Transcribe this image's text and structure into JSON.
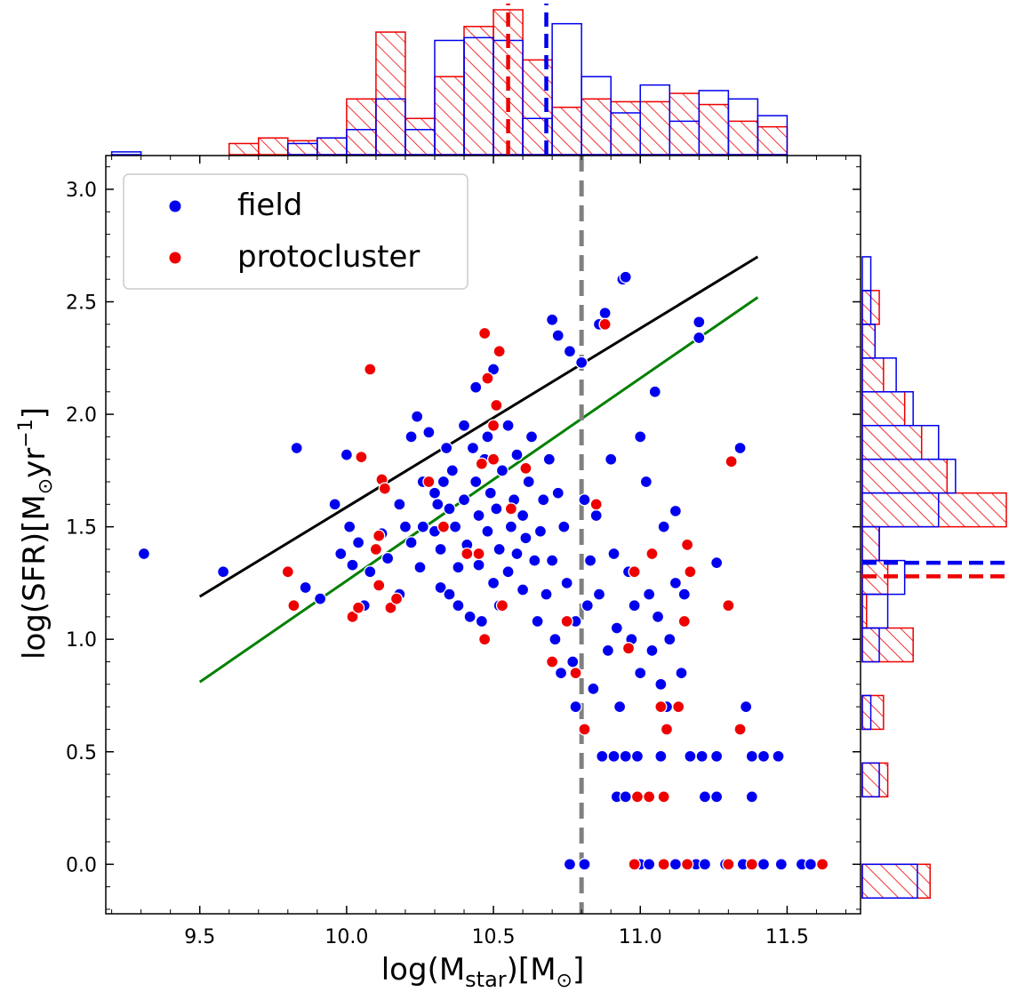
{
  "chart_data": {
    "type": "scatter",
    "title": "",
    "xlabel": {
      "main": "log(M",
      "sub": "star",
      "rest": ")[M",
      "sym": "⊙",
      "end": "]"
    },
    "ylabel": {
      "main": "log(SFR)[M",
      "sym": "⊙",
      "mid": "yr",
      "sup": "−1",
      "end": "]"
    },
    "xlim": [
      9.18,
      11.75
    ],
    "ylim": [
      -0.22,
      3.15
    ],
    "xticks": [
      "9.5",
      "10.0",
      "10.5",
      "11.0",
      "11.5"
    ],
    "xtick_values": [
      9.5,
      10.0,
      10.5,
      11.0,
      11.5
    ],
    "yticks": [
      "0.0",
      "0.5",
      "1.0",
      "1.5",
      "2.0",
      "2.5",
      "3.0"
    ],
    "ytick_values": [
      0.0,
      0.5,
      1.0,
      1.5,
      2.0,
      2.5,
      3.0
    ],
    "legend": {
      "placement": "upper-left",
      "entries": [
        {
          "label": "field",
          "color": "#0000ee"
        },
        {
          "label": "protocluster",
          "color": "#ee0000"
        }
      ]
    },
    "colors": {
      "field": "#0000ee",
      "protocluster": "#ee0000",
      "black_line": "#000000",
      "green_line": "#008000",
      "mass_cut": "#808080"
    },
    "lines": [
      {
        "color": "black",
        "x": [
          9.5,
          11.4
        ],
        "y": [
          1.19,
          2.7
        ]
      },
      {
        "color": "green",
        "x": [
          9.5,
          11.4
        ],
        "y": [
          0.81,
          2.52
        ]
      }
    ],
    "vline_mass_cut": 10.8,
    "series": [
      {
        "name": "field",
        "points": [
          [
            9.31,
            1.38
          ],
          [
            9.58,
            1.3
          ],
          [
            9.83,
            1.85
          ],
          [
            9.86,
            1.23
          ],
          [
            9.91,
            1.18
          ],
          [
            9.96,
            1.6
          ],
          [
            9.98,
            1.38
          ],
          [
            10.0,
            1.82
          ],
          [
            10.01,
            1.5
          ],
          [
            10.02,
            1.33
          ],
          [
            10.04,
            1.43
          ],
          [
            10.06,
            1.15
          ],
          [
            10.08,
            1.3
          ],
          [
            10.12,
            1.47
          ],
          [
            10.14,
            1.36
          ],
          [
            10.18,
            1.6
          ],
          [
            10.18,
            1.2
          ],
          [
            10.2,
            1.5
          ],
          [
            10.22,
            1.43
          ],
          [
            10.22,
            1.9
          ],
          [
            10.24,
            1.99
          ],
          [
            10.25,
            1.32
          ],
          [
            10.26,
            1.5
          ],
          [
            10.26,
            1.7
          ],
          [
            10.28,
            1.92
          ],
          [
            10.3,
            1.65
          ],
          [
            10.3,
            1.48
          ],
          [
            10.31,
            1.6
          ],
          [
            10.32,
            1.4
          ],
          [
            10.32,
            1.23
          ],
          [
            10.33,
            1.7
          ],
          [
            10.34,
            1.85
          ],
          [
            10.35,
            1.58
          ],
          [
            10.35,
            1.2
          ],
          [
            10.36,
            1.75
          ],
          [
            10.37,
            1.5
          ],
          [
            10.38,
            1.32
          ],
          [
            10.38,
            1.15
          ],
          [
            10.4,
            1.62
          ],
          [
            10.4,
            1.95
          ],
          [
            10.41,
            1.42
          ],
          [
            10.42,
            1.1
          ],
          [
            10.43,
            1.85
          ],
          [
            10.44,
            1.7
          ],
          [
            10.44,
            2.12
          ],
          [
            10.45,
            1.55
          ],
          [
            10.45,
            1.33
          ],
          [
            10.46,
            1.08
          ],
          [
            10.47,
            1.8
          ],
          [
            10.48,
            1.9
          ],
          [
            10.48,
            1.48
          ],
          [
            10.49,
            1.65
          ],
          [
            10.5,
            1.25
          ],
          [
            10.5,
            2.2
          ],
          [
            10.51,
            1.58
          ],
          [
            10.52,
            1.4
          ],
          [
            10.52,
            1.15
          ],
          [
            10.53,
            1.75
          ],
          [
            10.55,
            1.95
          ],
          [
            10.55,
            1.3
          ],
          [
            10.56,
            1.5
          ],
          [
            10.57,
            1.62
          ],
          [
            10.58,
            1.38
          ],
          [
            10.58,
            1.82
          ],
          [
            10.6,
            1.22
          ],
          [
            10.6,
            1.55
          ],
          [
            10.61,
            1.45
          ],
          [
            10.62,
            1.7
          ],
          [
            10.63,
            1.9
          ],
          [
            10.64,
            1.35
          ],
          [
            10.65,
            1.08
          ],
          [
            10.66,
            1.48
          ],
          [
            10.67,
            1.62
          ],
          [
            10.68,
            1.2
          ],
          [
            10.69,
            1.8
          ],
          [
            10.7,
            2.42
          ],
          [
            10.7,
            1.35
          ],
          [
            10.71,
            1.0
          ],
          [
            10.72,
            2.35
          ],
          [
            10.72,
            1.65
          ],
          [
            10.73,
            0.85
          ],
          [
            10.74,
            1.5
          ],
          [
            10.75,
            1.25
          ],
          [
            10.76,
            2.28
          ],
          [
            10.77,
            0.9
          ],
          [
            10.78,
            0.7
          ],
          [
            10.78,
            1.08
          ],
          [
            10.8,
            2.23
          ],
          [
            10.81,
            1.62
          ],
          [
            10.82,
            1.15
          ],
          [
            10.83,
            1.35
          ],
          [
            10.84,
            0.78
          ],
          [
            10.85,
            1.55
          ],
          [
            10.86,
            2.4
          ],
          [
            10.86,
            1.2
          ],
          [
            10.88,
            2.45
          ],
          [
            10.89,
            0.95
          ],
          [
            10.9,
            1.8
          ],
          [
            10.91,
            1.38
          ],
          [
            10.92,
            1.05
          ],
          [
            10.93,
            0.7
          ],
          [
            10.94,
            2.6
          ],
          [
            10.95,
            2.61
          ],
          [
            10.96,
            1.3
          ],
          [
            10.97,
            1.0
          ],
          [
            10.98,
            1.15
          ],
          [
            11.0,
            1.9
          ],
          [
            11.0,
            0.85
          ],
          [
            11.02,
            1.7
          ],
          [
            11.03,
            1.2
          ],
          [
            11.04,
            0.95
          ],
          [
            11.05,
            2.1
          ],
          [
            11.06,
            1.1
          ],
          [
            11.07,
            0.8
          ],
          [
            11.08,
            1.5
          ],
          [
            11.09,
            0.7
          ],
          [
            11.1,
            1.0
          ],
          [
            11.12,
            1.57
          ],
          [
            11.12,
            1.25
          ],
          [
            11.14,
            0.85
          ],
          [
            11.15,
            1.2
          ],
          [
            11.2,
            2.41
          ],
          [
            11.2,
            2.34
          ],
          [
            11.26,
            1.34
          ],
          [
            11.34,
            1.85
          ],
          [
            11.36,
            0.7
          ],
          [
            11.38,
            0.3
          ],
          [
            10.87,
            0.48
          ],
          [
            10.91,
            0.48
          ],
          [
            10.95,
            0.48
          ],
          [
            10.99,
            0.48
          ],
          [
            11.07,
            0.48
          ],
          [
            11.17,
            0.48
          ],
          [
            11.21,
            0.48
          ],
          [
            11.26,
            0.48
          ],
          [
            11.38,
            0.48
          ],
          [
            11.42,
            0.48
          ],
          [
            11.47,
            0.48
          ],
          [
            10.92,
            0.3
          ],
          [
            10.95,
            0.3
          ],
          [
            11.22,
            0.3
          ],
          [
            11.26,
            0.3
          ],
          [
            10.76,
            0.0
          ],
          [
            10.81,
            0.0
          ],
          [
            11.0,
            0.0
          ],
          [
            11.03,
            0.0
          ],
          [
            11.12,
            0.0
          ],
          [
            11.19,
            0.0
          ],
          [
            11.22,
            0.0
          ],
          [
            11.29,
            0.0
          ],
          [
            11.35,
            0.0
          ],
          [
            11.42,
            0.0
          ],
          [
            11.48,
            0.0
          ],
          [
            11.55,
            0.0
          ],
          [
            11.58,
            0.0
          ]
        ]
      },
      {
        "name": "protocluster",
        "points": [
          [
            9.8,
            1.3
          ],
          [
            9.82,
            1.15
          ],
          [
            10.02,
            1.1
          ],
          [
            10.04,
            1.14
          ],
          [
            10.05,
            1.81
          ],
          [
            10.08,
            2.2
          ],
          [
            10.1,
            1.4
          ],
          [
            10.11,
            1.24
          ],
          [
            10.11,
            1.46
          ],
          [
            10.12,
            1.71
          ],
          [
            10.13,
            1.67
          ],
          [
            10.15,
            1.14
          ],
          [
            10.17,
            1.18
          ],
          [
            10.28,
            1.7
          ],
          [
            10.33,
            1.5
          ],
          [
            10.41,
            1.38
          ],
          [
            10.45,
            1.38
          ],
          [
            10.46,
            1.78
          ],
          [
            10.47,
            2.36
          ],
          [
            10.47,
            1.0
          ],
          [
            10.48,
            2.16
          ],
          [
            10.5,
            1.8
          ],
          [
            10.5,
            1.95
          ],
          [
            10.51,
            2.04
          ],
          [
            10.52,
            2.28
          ],
          [
            10.53,
            1.15
          ],
          [
            10.56,
            1.58
          ],
          [
            10.61,
            1.76
          ],
          [
            10.7,
            0.9
          ],
          [
            10.75,
            1.08
          ],
          [
            10.78,
            0.85
          ],
          [
            10.81,
            0.6
          ],
          [
            10.85,
            1.6
          ],
          [
            10.88,
            2.4
          ],
          [
            10.96,
            0.96
          ],
          [
            10.98,
            1.3
          ],
          [
            11.04,
            1.38
          ],
          [
            11.07,
            0.7
          ],
          [
            11.09,
            0.6
          ],
          [
            11.13,
            0.7
          ],
          [
            11.15,
            1.08
          ],
          [
            11.16,
            1.42
          ],
          [
            11.17,
            1.3
          ],
          [
            11.3,
            1.15
          ],
          [
            11.31,
            1.79
          ],
          [
            11.34,
            0.6
          ],
          [
            10.99,
            0.3
          ],
          [
            11.03,
            0.3
          ],
          [
            11.08,
            0.3
          ],
          [
            10.98,
            0.0
          ],
          [
            11.08,
            0.0
          ],
          [
            11.16,
            0.0
          ],
          [
            11.3,
            0.0
          ],
          [
            11.38,
            0.0
          ],
          [
            11.62,
            0.0
          ]
        ]
      }
    ],
    "top_histogram": {
      "bin_edges": [
        9.1,
        9.2,
        9.3,
        9.4,
        9.5,
        9.6,
        9.7,
        9.8,
        9.9,
        10.0,
        10.1,
        10.2,
        10.3,
        10.4,
        10.5,
        10.6,
        10.7,
        10.8,
        10.9,
        11.0,
        11.1,
        11.2,
        11.3,
        11.4,
        11.5
      ],
      "field_counts": [
        0,
        1,
        0,
        0,
        0,
        0,
        0,
        4,
        6,
        9,
        20,
        9,
        41,
        42,
        41,
        13,
        47,
        28,
        15,
        25,
        12,
        23,
        20,
        14,
        9
      ],
      "protocluster_counts": [
        0,
        0,
        0,
        0,
        0,
        4,
        6,
        5,
        6,
        20,
        44,
        13,
        28,
        46,
        52,
        34,
        17,
        20,
        19,
        19,
        22,
        18,
        12,
        10,
        6
      ],
      "field_median": 10.68,
      "protocluster_median": 10.55
    },
    "right_histogram": {
      "bin_edges": [
        -0.15,
        0.0,
        0.15,
        0.3,
        0.45,
        0.6,
        0.75,
        0.9,
        1.05,
        1.2,
        1.35,
        1.5,
        1.65,
        1.8,
        1.95,
        2.1,
        2.25,
        2.4,
        2.55,
        2.7
      ],
      "field_counts": [
        13,
        0,
        0,
        4,
        0,
        2,
        0,
        4,
        6,
        10,
        4,
        18,
        22,
        18,
        12,
        8,
        3,
        2,
        2,
        1
      ],
      "protocluster_counts": [
        16,
        0,
        0,
        6,
        0,
        5,
        0,
        12,
        1,
        6,
        4,
        34,
        20,
        14,
        10,
        5,
        3,
        4,
        0,
        1
      ],
      "field_median": 1.34,
      "protocluster_median": 1.28
    }
  }
}
